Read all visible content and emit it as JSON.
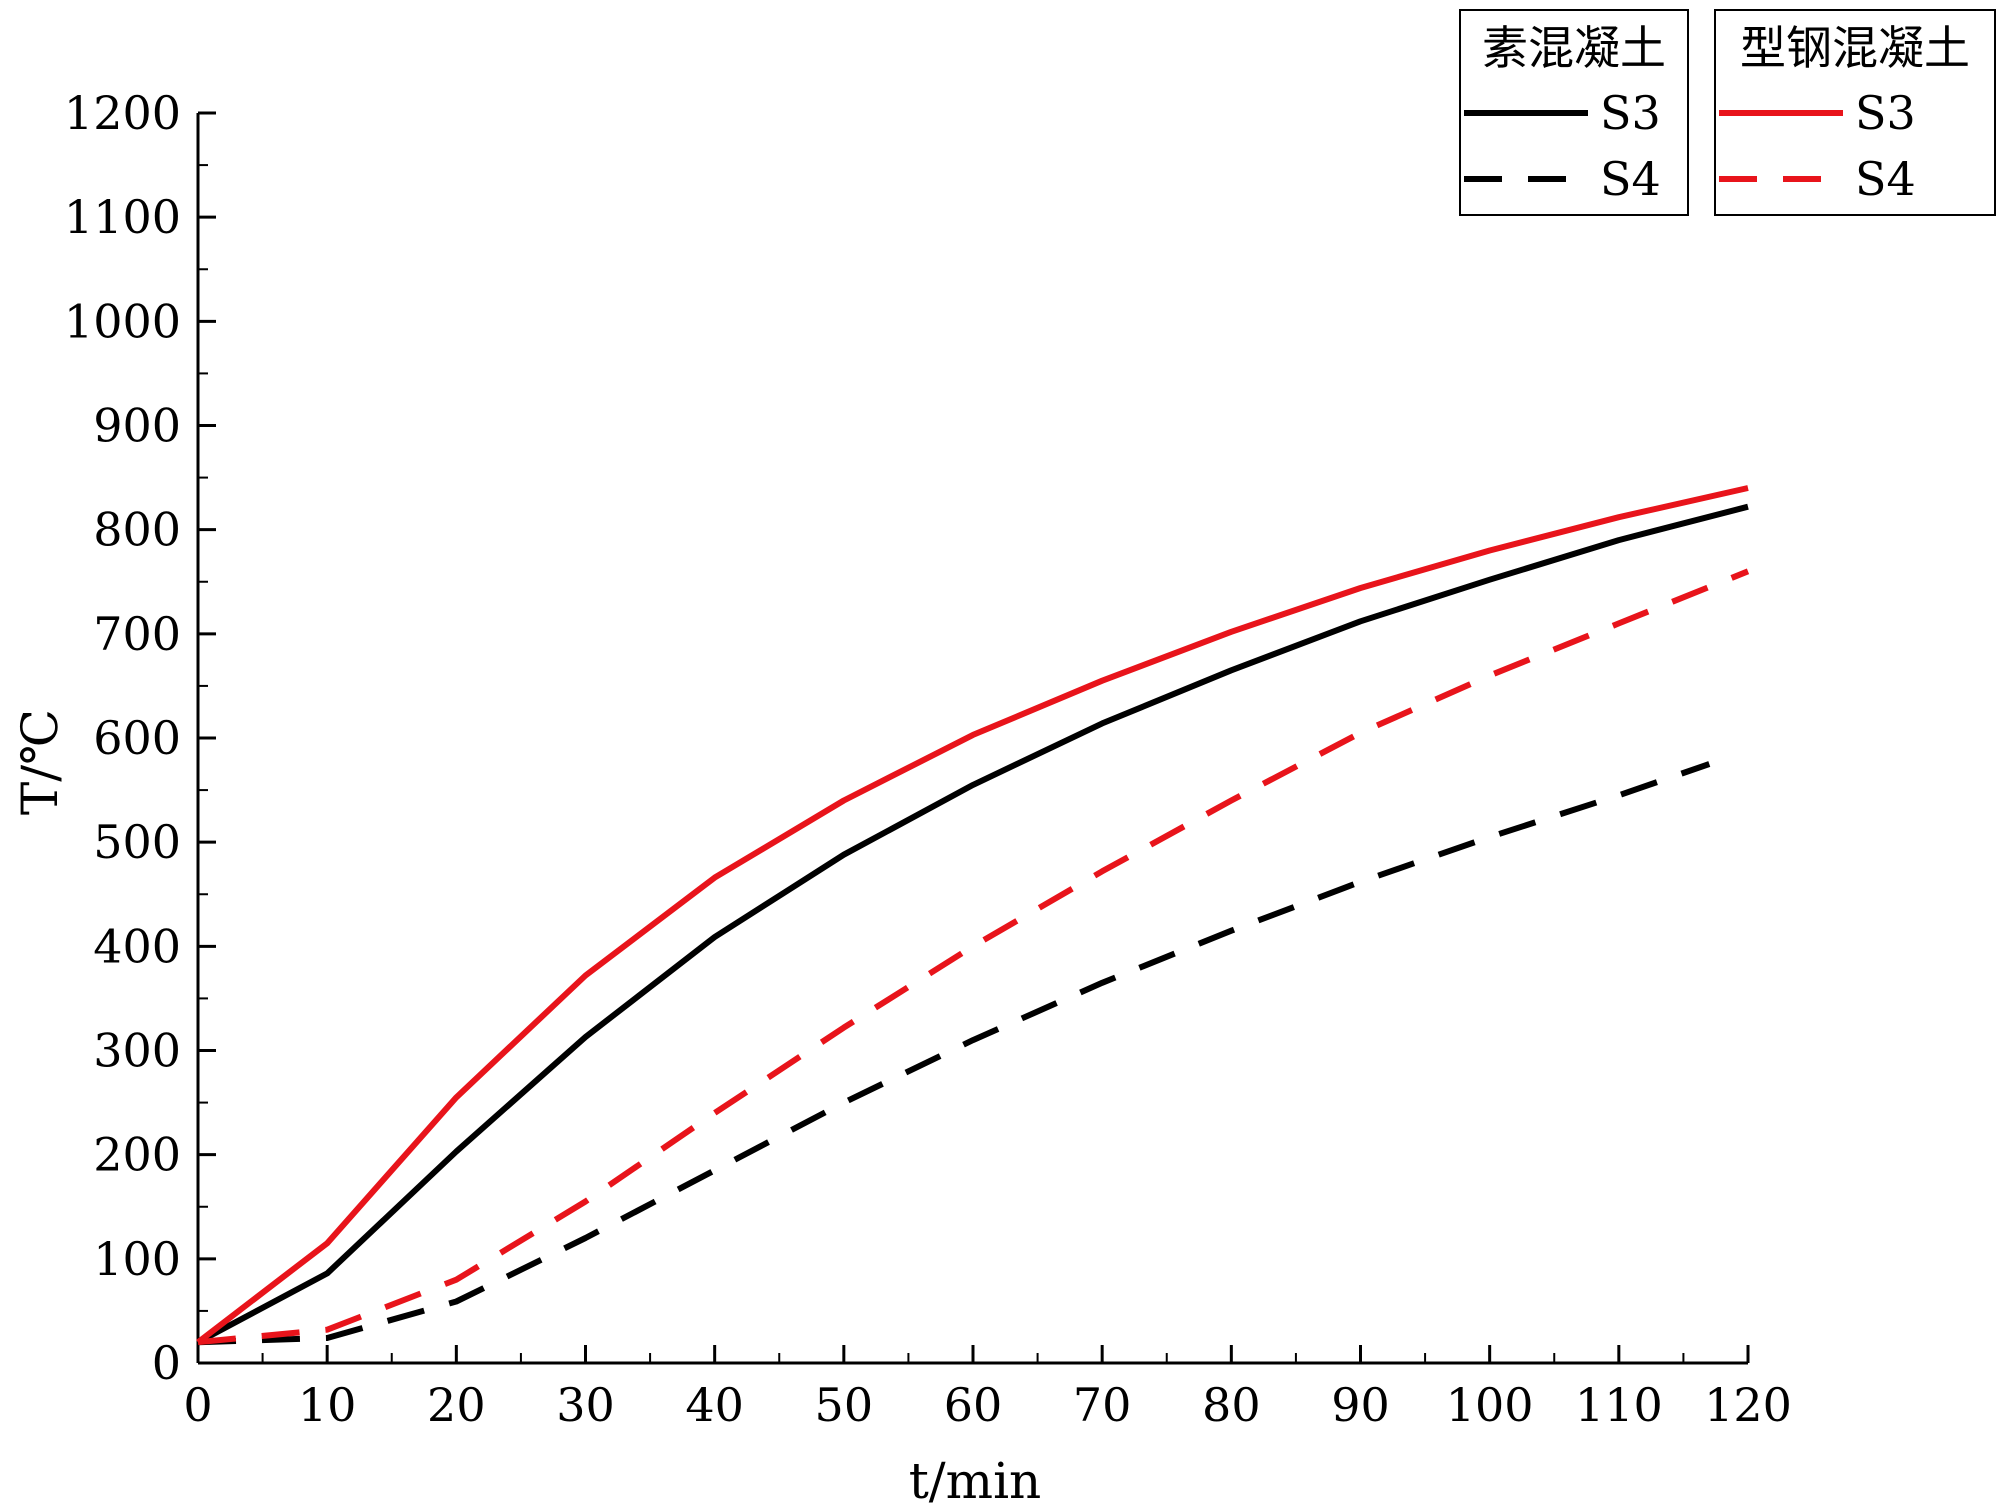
{
  "chart_data": {
    "type": "line",
    "xlabel": "t/min",
    "ylabel": "T/℃",
    "xlim": [
      0,
      120
    ],
    "ylim": [
      0,
      1200
    ],
    "x_ticks": [
      "0",
      "10",
      "20",
      "30",
      "40",
      "50",
      "60",
      "70",
      "80",
      "90",
      "100",
      "110",
      "120"
    ],
    "y_ticks": [
      "0",
      "100",
      "200",
      "300",
      "400",
      "500",
      "600",
      "700",
      "800",
      "900",
      "1000",
      "1100",
      "1200"
    ],
    "grid": false,
    "legend_position": "top-right",
    "legend_groups": [
      {
        "title": "素混凝土",
        "entries": [
          "S3",
          "S4"
        ]
      },
      {
        "title": "型钢混凝土",
        "entries": [
          "S3",
          "S4"
        ]
      }
    ],
    "series": [
      {
        "name": "S3",
        "group": "素混凝土",
        "color": "#000000",
        "style": "solid",
        "x": [
          0,
          10,
          20,
          30,
          40,
          50,
          60,
          70,
          80,
          90,
          100,
          110,
          120
        ],
        "y": [
          20,
          86,
          203,
          313,
          409,
          488,
          555,
          614,
          665,
          712,
          752,
          790,
          822
        ]
      },
      {
        "name": "S4",
        "group": "素混凝土",
        "color": "#000000",
        "style": "dashed",
        "x": [
          0,
          10,
          20,
          30,
          40,
          50,
          60,
          70,
          80,
          90,
          100,
          110,
          117
        ],
        "y": [
          20,
          24,
          59,
          120,
          185,
          250,
          310,
          365,
          415,
          462,
          505,
          545,
          575
        ]
      },
      {
        "name": "S3",
        "group": "型钢混凝土",
        "color": "#e8141b",
        "style": "solid",
        "x": [
          0,
          10,
          20,
          30,
          40,
          50,
          60,
          70,
          80,
          90,
          100,
          110,
          120
        ],
        "y": [
          20,
          115,
          255,
          372,
          466,
          540,
          603,
          655,
          702,
          744,
          780,
          812,
          840
        ]
      },
      {
        "name": "S4",
        "group": "型钢混凝土",
        "color": "#e8141b",
        "style": "dashed",
        "x": [
          0,
          10,
          20,
          30,
          40,
          50,
          60,
          70,
          80,
          90,
          100,
          110,
          120
        ],
        "y": [
          20,
          32,
          80,
          155,
          240,
          322,
          400,
          472,
          540,
          605,
          660,
          710,
          760
        ]
      }
    ]
  }
}
